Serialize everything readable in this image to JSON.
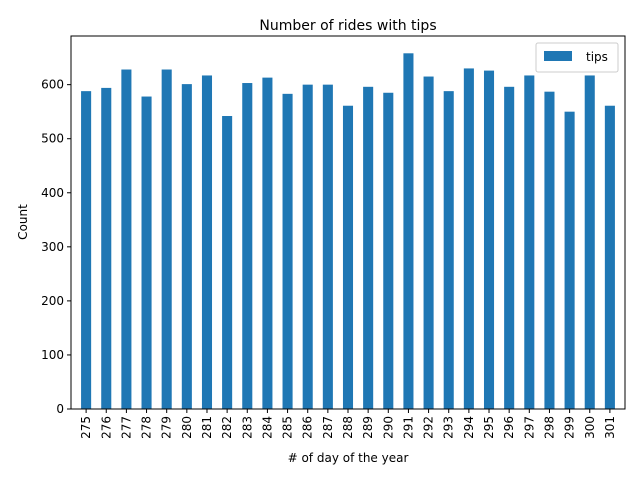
{
  "chart_data": {
    "type": "bar",
    "title": "Number of rides with tips",
    "xlabel": "# of day of the year",
    "ylabel": "Count",
    "ylim": [
      0,
      690
    ],
    "yticks": [
      0,
      100,
      200,
      300,
      400,
      500,
      600
    ],
    "categories": [
      "275",
      "276",
      "277",
      "278",
      "279",
      "280",
      "281",
      "282",
      "283",
      "284",
      "285",
      "286",
      "287",
      "288",
      "289",
      "290",
      "291",
      "292",
      "293",
      "294",
      "295",
      "296",
      "297",
      "298",
      "299",
      "300",
      "301"
    ],
    "series": [
      {
        "name": "tips",
        "color": "#1f77b4",
        "values": [
          588,
          594,
          628,
          578,
          628,
          601,
          617,
          542,
          603,
          613,
          583,
          600,
          600,
          561,
          596,
          585,
          658,
          615,
          588,
          630,
          626,
          596,
          617,
          587,
          550,
          617,
          561
        ]
      }
    ],
    "legend": {
      "position": "top-right",
      "entries": [
        "tips"
      ]
    },
    "grid": false
  }
}
